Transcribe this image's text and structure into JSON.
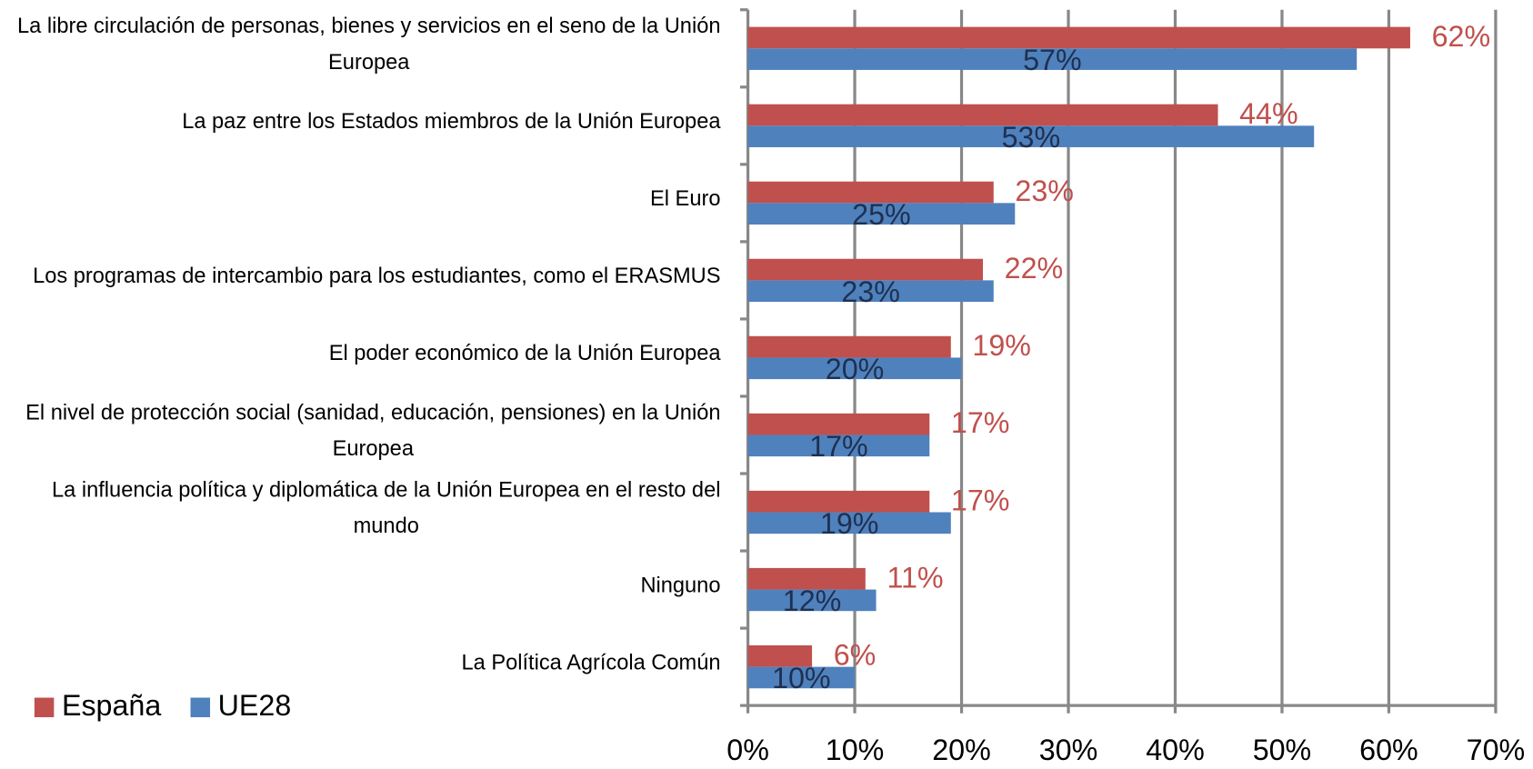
{
  "chart_data": {
    "type": "hbar",
    "categories": [
      "La libre circulación de personas, bienes y servicios en el seno de la Unión Europea",
      "La paz entre los Estados miembros de la Unión Europea",
      "El Euro",
      "Los programas de intercambio para los estudiantes, como el ERASMUS",
      "El poder económico de la Unión Europea",
      "El nivel de protección social (sanidad, educación, pensiones) en la Unión Europea",
      "La influencia política y diplomática de la Unión Europea en el resto del mundo",
      "Ninguno",
      "La Política Agrícola Común"
    ],
    "series": [
      {
        "name": "España",
        "color": "#c0504d",
        "values": [
          62,
          44,
          23,
          22,
          19,
          17,
          17,
          11,
          6
        ],
        "value_labels": [
          "62%",
          "44%",
          "23%",
          "22%",
          "19%",
          "17%",
          "17%",
          "11%",
          "6%"
        ]
      },
      {
        "name": "UE28",
        "color": "#4f81bd",
        "values": [
          57,
          53,
          25,
          23,
          20,
          17,
          19,
          12,
          10
        ],
        "value_labels": [
          "57%",
          "53%",
          "25%",
          "23%",
          "20%",
          "17%",
          "19%",
          "12%",
          "10%"
        ]
      }
    ],
    "xlim": [
      0,
      70
    ],
    "xticks": [
      {
        "value": 0,
        "label": "0%"
      },
      {
        "value": 10,
        "label": "10%"
      },
      {
        "value": 20,
        "label": "20%"
      },
      {
        "value": 30,
        "label": "30%"
      },
      {
        "value": 40,
        "label": "40%"
      },
      {
        "value": 50,
        "label": "50%"
      },
      {
        "value": 60,
        "label": "60%"
      },
      {
        "value": 70,
        "label": "70%"
      }
    ],
    "grid": true,
    "legend": "bottom-left"
  }
}
